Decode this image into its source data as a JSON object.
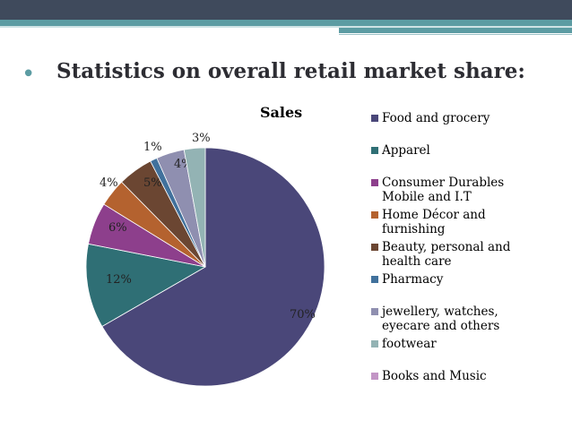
{
  "slide": {
    "bullet": "•",
    "heading": "Statistics on overall retail market share:"
  },
  "chart_data": {
    "type": "pie",
    "title": "Sales",
    "categories": [
      "Food and grocery",
      "Apparel",
      "Consumer Durables Mobile and I.T",
      "Home Décor and furnishing",
      "Beauty, personal and health care",
      "Pharmacy",
      "jewellery, watches, eyecare and others",
      "footwear",
      "Books and Music"
    ],
    "values": [
      70,
      12,
      6,
      4,
      5,
      1,
      4,
      3,
      0
    ],
    "data_labels": [
      "70%",
      "12%",
      "6%",
      "4%",
      "5%",
      "1%",
      "4%",
      "3%",
      ""
    ],
    "colors": [
      "#4a4779",
      "#2f6f75",
      "#8d3f8c",
      "#b4622f",
      "#6b4632",
      "#41719c",
      "#8f8fb0",
      "#93b3b4",
      "#c295c5"
    ],
    "legend": [
      {
        "lines": [
          "Food and grocery"
        ]
      },
      {
        "lines": [
          "Apparel"
        ]
      },
      {
        "lines": [
          "Consumer Durables",
          "Mobile and I.T"
        ]
      },
      {
        "lines": [
          "Home Décor and",
          "furnishing"
        ]
      },
      {
        "lines": [
          "Beauty, personal and",
          "health care"
        ]
      },
      {
        "lines": [
          "Pharmacy"
        ]
      },
      {
        "lines": [
          "jewellery, watches,",
          "eyecare and others"
        ]
      },
      {
        "lines": [
          "footwear"
        ]
      },
      {
        "lines": [
          "Books and Music"
        ]
      }
    ],
    "legend_position": "right"
  }
}
